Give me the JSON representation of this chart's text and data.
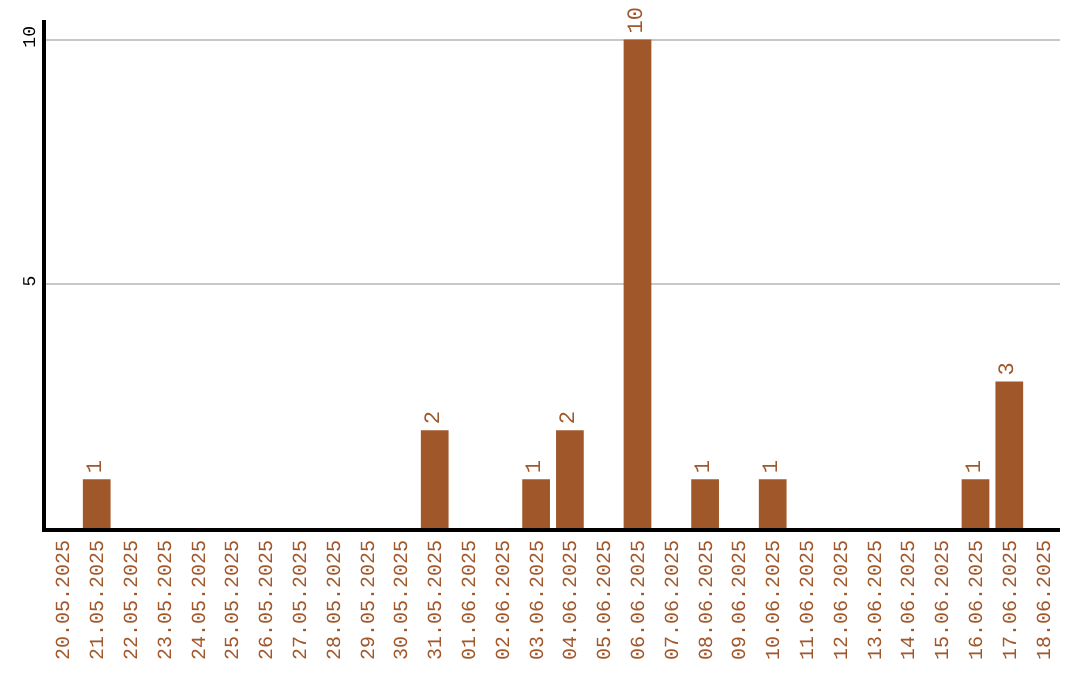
{
  "chart_data": {
    "type": "bar",
    "categories": [
      "20.05.2025",
      "21.05.2025",
      "22.05.2025",
      "23.05.2025",
      "24.05.2025",
      "25.05.2025",
      "26.05.2025",
      "27.05.2025",
      "28.05.2025",
      "29.05.2025",
      "30.05.2025",
      "31.05.2025",
      "01.06.2025",
      "02.06.2025",
      "03.06.2025",
      "04.06.2025",
      "05.06.2025",
      "06.06.2025",
      "07.06.2025",
      "08.06.2025",
      "09.06.2025",
      "10.06.2025",
      "11.06.2025",
      "12.06.2025",
      "13.06.2025",
      "14.06.2025",
      "15.06.2025",
      "16.06.2025",
      "17.06.2025",
      "18.06.2025"
    ],
    "series": [
      {
        "color": "#a0572a",
        "values": [
          0,
          1,
          0,
          0,
          0,
          0,
          0,
          0,
          0,
          0,
          0,
          2,
          0,
          0,
          1,
          2,
          0,
          10,
          0,
          1,
          0,
          1,
          0,
          0,
          0,
          0,
          0,
          1,
          3,
          0
        ],
        "value_labels": [
          null,
          "1",
          null,
          null,
          null,
          null,
          null,
          null,
          null,
          null,
          null,
          "2",
          null,
          null,
          "1",
          "2",
          null,
          "10",
          null,
          "1",
          null,
          "1",
          null,
          null,
          null,
          null,
          null,
          "1",
          "3",
          null
        ]
      }
    ],
    "ylim": [
      0,
      10.4
    ],
    "yticks": [
      5,
      10
    ],
    "grid": "y"
  }
}
